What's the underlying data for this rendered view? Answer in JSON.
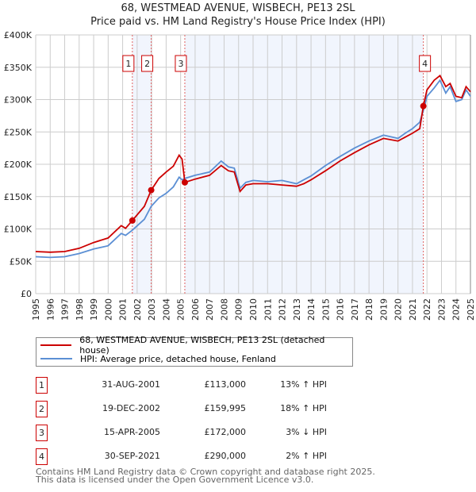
{
  "title_line1": "68, WESTMEAD AVENUE, WISBECH, PE13 2SL",
  "title_line2": "Price paid vs. HM Land Registry's House Price Index (HPI)",
  "chart_data": {
    "type": "line",
    "xlim": [
      1995,
      2025
    ],
    "ylim": [
      0,
      400000
    ],
    "y_ticks": [
      0,
      50000,
      100000,
      150000,
      200000,
      250000,
      300000,
      350000,
      400000
    ],
    "y_tick_labels": [
      "£0",
      "£50K",
      "£100K",
      "£150K",
      "£200K",
      "£250K",
      "£300K",
      "£350K",
      "£400K"
    ],
    "x_ticks": [
      1995,
      1996,
      1997,
      1998,
      1999,
      2000,
      2001,
      2002,
      2003,
      2004,
      2005,
      2006,
      2007,
      2008,
      2009,
      2010,
      2011,
      2012,
      2013,
      2014,
      2015,
      2016,
      2017,
      2018,
      2019,
      2020,
      2021,
      2022,
      2023,
      2024,
      2025
    ],
    "x_tick_labels": [
      "1995",
      "1996",
      "1997",
      "1998",
      "1999",
      "2000",
      "2001",
      "2002",
      "2003",
      "2004",
      "2005",
      "2006",
      "2007",
      "2008",
      "2009",
      "2010",
      "2011",
      "2012",
      "2013",
      "2014",
      "2015",
      "2016",
      "2017",
      "2018",
      "2019",
      "2020",
      "2021",
      "2022",
      "2023",
      "2024",
      "2025"
    ],
    "grid": true,
    "series": [
      {
        "name": "68, WESTMEAD AVENUE, WISBECH, PE13 2SL (detached house)",
        "color": "#cc0000",
        "x": [
          1995,
          1996,
          1997,
          1998,
          1999,
          2000,
          2000.9,
          2001.2,
          2001.67,
          2002.5,
          2002.97,
          2003.5,
          2004,
          2004.5,
          2004.9,
          2005.1,
          2005.29,
          2006,
          2007,
          2007.8,
          2008.3,
          2008.7,
          2009.1,
          2009.5,
          2010,
          2011,
          2012,
          2013,
          2013.5,
          2014,
          2015,
          2016,
          2017,
          2018,
          2019,
          2020,
          2020.5,
          2021,
          2021.5,
          2021.75,
          2022,
          2022.5,
          2022.9,
          2023.3,
          2023.6,
          2024,
          2024.4,
          2024.7,
          2025
        ],
        "y": [
          65000,
          64000,
          65000,
          70000,
          79000,
          86000,
          105000,
          101000,
          113000,
          135000,
          159995,
          178000,
          188000,
          197000,
          214000,
          208000,
          172000,
          177000,
          183000,
          198000,
          190000,
          188000,
          158000,
          168000,
          170000,
          170000,
          168000,
          166000,
          170000,
          176000,
          190000,
          205000,
          218000,
          230000,
          240000,
          236000,
          242000,
          248000,
          255000,
          290000,
          315000,
          330000,
          337000,
          320000,
          325000,
          305000,
          303000,
          320000,
          312000
        ]
      },
      {
        "name": "HPI: Average price, detached house, Fenland",
        "color": "#5b8fd4",
        "x": [
          1995,
          1996,
          1997,
          1998,
          1999,
          2000,
          2000.9,
          2001.2,
          2001.67,
          2002.5,
          2002.97,
          2003.5,
          2004,
          2004.5,
          2004.9,
          2005.1,
          2005.29,
          2006,
          2007,
          2007.8,
          2008.3,
          2008.7,
          2009.1,
          2009.5,
          2010,
          2011,
          2012,
          2013,
          2013.5,
          2014,
          2015,
          2016,
          2017,
          2018,
          2019,
          2020,
          2020.5,
          2021,
          2021.5,
          2021.75,
          2022,
          2022.5,
          2022.9,
          2023.3,
          2023.6,
          2024,
          2024.4,
          2024.7,
          2025
        ],
        "y": [
          57000,
          56000,
          57000,
          62000,
          69000,
          74000,
          93000,
          90000,
          98000,
          115000,
          135000,
          148000,
          155000,
          165000,
          180000,
          176000,
          178000,
          183000,
          188000,
          205000,
          196000,
          194000,
          163000,
          172000,
          175000,
          173000,
          175000,
          170000,
          176000,
          182000,
          198000,
          212000,
          225000,
          236000,
          245000,
          240000,
          248000,
          255000,
          265000,
          283000,
          305000,
          318000,
          330000,
          310000,
          320000,
          297000,
          300000,
          315000,
          305000
        ]
      }
    ],
    "sales": [
      {
        "label": "1",
        "x": 2001.67,
        "y": 113000
      },
      {
        "label": "2",
        "x": 2002.97,
        "y": 159995
      },
      {
        "label": "3",
        "x": 2005.29,
        "y": 172000
      },
      {
        "label": "4",
        "x": 2021.75,
        "y": 290000
      }
    ],
    "shaded_ranges": [
      [
        2001.67,
        2002.97
      ],
      [
        2005.29,
        2021.75
      ]
    ],
    "legend_placement": "below"
  },
  "legend": {
    "property": "68, WESTMEAD AVENUE, WISBECH, PE13 2SL (detached house)",
    "hpi": "HPI: Average price, detached house, Fenland"
  },
  "transactions": [
    {
      "num": "1",
      "date": "31-AUG-2001",
      "price": "£113,000",
      "hpi": "13% ↑ HPI"
    },
    {
      "num": "2",
      "date": "19-DEC-2002",
      "price": "£159,995",
      "hpi": "18% ↑ HPI"
    },
    {
      "num": "3",
      "date": "15-APR-2005",
      "price": "£172,000",
      "hpi": "3% ↓ HPI"
    },
    {
      "num": "4",
      "date": "30-SEP-2021",
      "price": "£290,000",
      "hpi": "2% ↑ HPI"
    }
  ],
  "footer_line1": "Contains HM Land Registry data © Crown copyright and database right 2025.",
  "footer_line2": "This data is licensed under the Open Government Licence v3.0."
}
